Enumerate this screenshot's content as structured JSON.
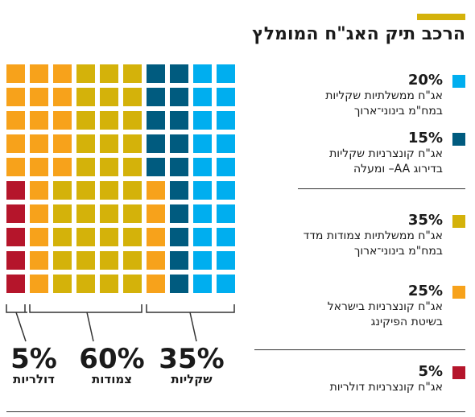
{
  "title": "הרכב תיק האג\"ח המומלץ",
  "colors": {
    "accent": "#d4b20a",
    "light_blue": "#00aeef",
    "dark_blue": "#005b7f",
    "mustard": "#d4b20a",
    "orange": "#f7a21b",
    "red": "#b5152b"
  },
  "chart_data": {
    "type": "waffle",
    "grid_rows": 10,
    "grid_cols": 10,
    "series": [
      {
        "label": "אג\"ח ממשלתיות שקליות במח\"מ בינוני־ארוך",
        "value": 20,
        "color": "#00aeef"
      },
      {
        "label": "אג\"ח קונצרניות שקליות בדירוג AA– ומעלה",
        "value": 15,
        "color": "#005b7f"
      },
      {
        "label": "אג\"ח ממשלתיות צמודות מדד במח\"מ בינוני־ארוך",
        "value": 35,
        "color": "#d4b20a"
      },
      {
        "label": "אג\"ח קונצרניות בישראל בשיטת הפיקינג",
        "value": 25,
        "color": "#f7a21b"
      },
      {
        "label": "אג\"ח קונצרניות דולריות",
        "value": 5,
        "color": "#b5152b"
      }
    ],
    "groups": [
      {
        "pct": "35%",
        "label": "שקליות",
        "value": 35
      },
      {
        "pct": "60%",
        "label": "צמודות",
        "value": 60
      },
      {
        "pct": "5%",
        "label": "דולריות",
        "value": 5
      }
    ]
  },
  "legend": [
    {
      "pct": "20%",
      "line1": "אג\"ח ממשלתיות שקליות",
      "line2": "במח\"מ בינוני־ארוך",
      "color": "#00aeef"
    },
    {
      "pct": "15%",
      "line1": "אג\"ח קונצרניות שקליות",
      "line2": "בדירוג AA– ומעלה",
      "color": "#005b7f"
    },
    {
      "pct": "35%",
      "line1": "אג\"ח ממשלתיות צמודות מדד",
      "line2": "במח\"מ בינוני־ארוך",
      "color": "#d4b20a"
    },
    {
      "pct": "25%",
      "line1": "אג\"ח קונצרניות בישראל",
      "line2": "בשיטת הפיקינג",
      "color": "#f7a21b"
    },
    {
      "pct": "5%",
      "line1": "אג\"ח קונצרניות דולריות",
      "line2": "",
      "color": "#b5152b"
    }
  ],
  "groups": [
    {
      "pct": "35%",
      "label": "שקליות"
    },
    {
      "pct": "60%",
      "label": "צמודות"
    },
    {
      "pct": "5%",
      "label": "דולריות"
    }
  ]
}
